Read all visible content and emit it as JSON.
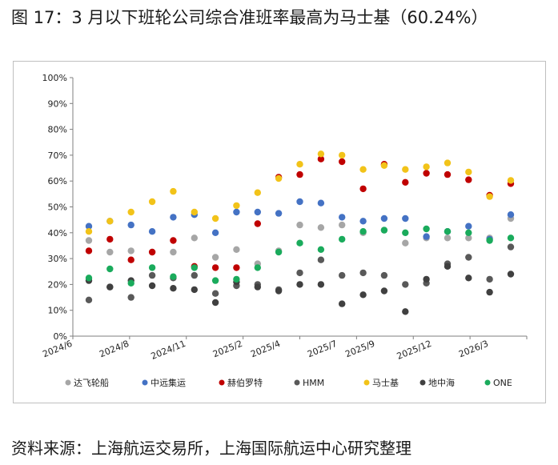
{
  "title": "图 17：3 月以下班轮公司综合准班率最高为马士基（60.24%）",
  "source": "资料来源：上海航运交易所，上海国际航运中心研究整理",
  "chart_data": {
    "type": "scatter",
    "x_ticks": [
      "2024/6",
      "2024/8",
      "2024/11",
      "2025/2",
      "2025/4",
      "2025/7",
      "2025/9",
      "2025/12",
      "2026/3"
    ],
    "y_ticks": [
      "0%",
      "10%",
      "20%",
      "30%",
      "40%",
      "50%",
      "60%",
      "70%",
      "80%",
      "90%",
      "100%"
    ],
    "ylim": [
      0,
      100
    ],
    "months": [
      "2024/7",
      "2024/8",
      "2024/9",
      "2024/10",
      "2024/11",
      "2024/12",
      "2025/1",
      "2025/2",
      "2025/3",
      "2025/4",
      "2025/5",
      "2025/6",
      "2025/7",
      "2025/8",
      "2025/9",
      "2025/10",
      "2025/11",
      "2025/12",
      "2026/1",
      "2026/2",
      "2026/3"
    ],
    "grid": false,
    "legend_position": "bottom",
    "series": [
      {
        "name": "达飞轮船",
        "color": "#a6a6a6",
        "values": [
          37,
          32.5,
          33,
          32.5,
          32.5,
          38,
          30.5,
          33.5,
          28,
          33,
          43,
          42,
          43,
          40,
          41,
          36,
          38,
          38,
          38,
          38,
          45.5
        ]
      },
      {
        "name": "中远集运",
        "color": "#4472c4",
        "values": [
          42.5,
          44.5,
          43,
          40.5,
          46,
          47,
          40,
          48,
          48,
          47.5,
          52,
          51.5,
          46,
          44.5,
          45.5,
          45.5,
          38.5,
          40.5,
          42.5,
          37.5,
          47
        ]
      },
      {
        "name": "赫伯罗特",
        "color": "#c00000",
        "values": [
          33,
          37.5,
          29.5,
          32.5,
          37,
          27,
          26.5,
          26.5,
          43.5,
          61.5,
          62.5,
          68.5,
          67.5,
          57,
          66.5,
          59.5,
          63,
          62.5,
          60.5,
          54.5,
          59
        ]
      },
      {
        "name": "HMM",
        "color": "#595959",
        "values": [
          14,
          19,
          15,
          23.5,
          22.5,
          23.5,
          16.5,
          19.5,
          20,
          18,
          24.5,
          29.5,
          23.5,
          24.5,
          23.5,
          20,
          20.5,
          28,
          30.5,
          22,
          34.5
        ]
      },
      {
        "name": "马士基",
        "color": "#f2c319",
        "values": [
          40.5,
          44.5,
          48,
          52,
          56,
          48,
          45.5,
          50.5,
          55.5,
          61,
          66.5,
          70.5,
          70,
          64.5,
          66,
          64.5,
          65.5,
          67,
          63.5,
          54,
          60.24
        ]
      },
      {
        "name": "地中海",
        "color": "#404040",
        "values": [
          21.5,
          19,
          21.5,
          19.5,
          18.5,
          18,
          13,
          21,
          19,
          17.5,
          20,
          20,
          12.5,
          16,
          17.5,
          9.5,
          22,
          27,
          22.5,
          17,
          24
        ]
      },
      {
        "name": "ONE",
        "color": "#1aab5c",
        "values": [
          22.5,
          26,
          20.5,
          26.5,
          23,
          26.5,
          21.5,
          22,
          26.5,
          32.5,
          36,
          33.5,
          37.5,
          40.5,
          41,
          40,
          41.5,
          40.5,
          40,
          37,
          38
        ]
      }
    ]
  }
}
